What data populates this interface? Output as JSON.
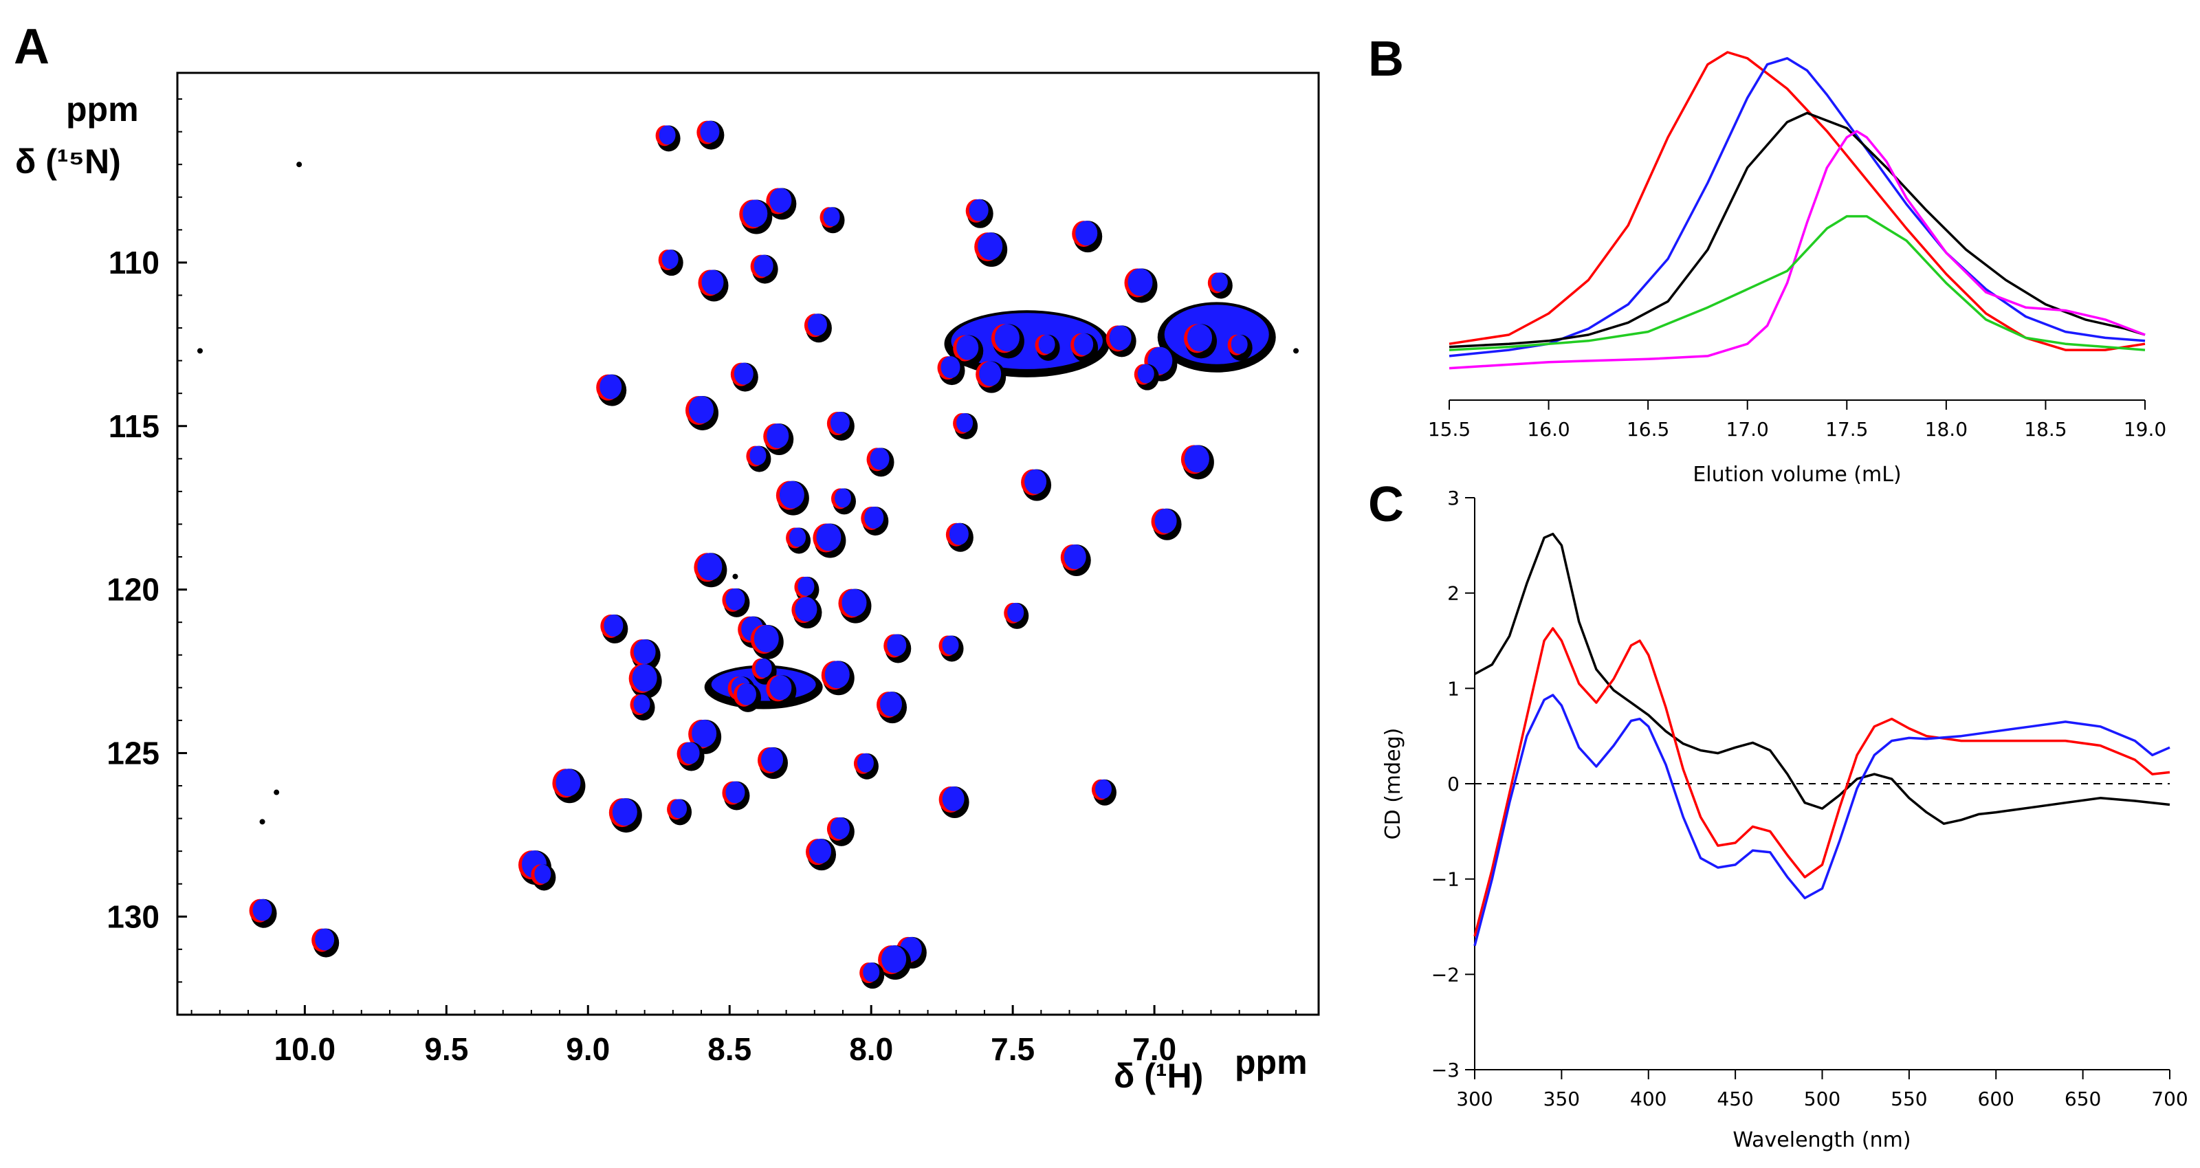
{
  "chart_data": [
    {
      "panel": "A",
      "type": "scatter",
      "subtype": "2D 1H-15N HSQC overlay",
      "xlabel": "δ (¹H)",
      "xunit": "ppm",
      "ylabel": "δ (¹⁵N)",
      "yunit": "ppm",
      "xlim": [
        10.45,
        6.42
      ],
      "ylim": [
        104.2,
        133
      ],
      "x_ticks": [
        "10.0",
        "9.5",
        "9.0",
        "8.5",
        "8.0",
        "7.5",
        "7.0"
      ],
      "y_ticks": [
        "110",
        "115",
        "120",
        "125",
        "130"
      ],
      "colors": {
        "black": "#000000",
        "red": "#ff0000",
        "blue": "#1a1aff"
      },
      "series": [
        {
          "name": "black",
          "color": "#000000"
        },
        {
          "name": "red",
          "color": "#ff0000"
        },
        {
          "name": "blue",
          "color": "#1a1aff"
        }
      ],
      "peaks": [
        [
          8.72,
          106.1
        ],
        [
          8.57,
          106.0
        ],
        [
          8.32,
          108.1
        ],
        [
          8.41,
          108.5
        ],
        [
          8.14,
          108.6
        ],
        [
          7.62,
          108.4
        ],
        [
          7.24,
          109.1
        ],
        [
          7.58,
          109.5
        ],
        [
          8.71,
          109.9
        ],
        [
          8.38,
          110.1
        ],
        [
          8.56,
          110.6
        ],
        [
          7.05,
          110.6
        ],
        [
          6.77,
          110.6
        ],
        [
          8.19,
          111.9
        ],
        [
          7.66,
          112.6
        ],
        [
          7.52,
          112.3
        ],
        [
          7.38,
          112.5
        ],
        [
          7.25,
          112.5
        ],
        [
          7.12,
          112.3
        ],
        [
          6.84,
          112.3
        ],
        [
          6.7,
          112.5
        ],
        [
          7.72,
          113.2
        ],
        [
          7.58,
          113.4
        ],
        [
          6.98,
          113.0
        ],
        [
          7.03,
          113.4
        ],
        [
          8.45,
          113.4
        ],
        [
          8.92,
          113.8
        ],
        [
          8.6,
          114.5
        ],
        [
          7.67,
          114.9
        ],
        [
          8.11,
          114.9
        ],
        [
          8.33,
          115.3
        ],
        [
          6.85,
          116.0
        ],
        [
          8.4,
          115.9
        ],
        [
          7.97,
          116.0
        ],
        [
          7.42,
          116.7
        ],
        [
          8.28,
          117.1
        ],
        [
          8.1,
          117.2
        ],
        [
          7.99,
          117.8
        ],
        [
          6.96,
          117.9
        ],
        [
          8.15,
          118.4
        ],
        [
          8.26,
          118.4
        ],
        [
          7.69,
          118.3
        ],
        [
          7.28,
          119.0
        ],
        [
          8.57,
          119.3
        ],
        [
          8.23,
          119.9
        ],
        [
          8.48,
          120.3
        ],
        [
          8.23,
          120.6
        ],
        [
          8.06,
          120.4
        ],
        [
          7.49,
          120.7
        ],
        [
          8.91,
          121.1
        ],
        [
          8.42,
          121.2
        ],
        [
          8.37,
          121.5
        ],
        [
          7.72,
          121.7
        ],
        [
          7.91,
          121.7
        ],
        [
          8.8,
          121.9
        ],
        [
          8.8,
          122.7
        ],
        [
          8.38,
          122.4
        ],
        [
          8.46,
          123.0
        ],
        [
          8.32,
          123.0
        ],
        [
          8.12,
          122.6
        ],
        [
          8.81,
          123.5
        ],
        [
          8.44,
          123.2
        ],
        [
          7.93,
          123.5
        ],
        [
          8.59,
          124.4
        ],
        [
          8.02,
          125.3
        ],
        [
          8.64,
          125.0
        ],
        [
          8.35,
          125.2
        ],
        [
          9.07,
          125.9
        ],
        [
          7.18,
          126.1
        ],
        [
          8.48,
          126.2
        ],
        [
          7.71,
          126.4
        ],
        [
          8.87,
          126.8
        ],
        [
          8.68,
          126.7
        ],
        [
          8.11,
          127.3
        ],
        [
          8.18,
          128.0
        ],
        [
          9.19,
          128.4
        ],
        [
          9.16,
          128.7
        ],
        [
          10.15,
          129.8
        ],
        [
          7.86,
          131.0
        ],
        [
          7.92,
          131.3
        ],
        [
          8.0,
          131.7
        ],
        [
          9.93,
          130.7
        ]
      ]
    },
    {
      "panel": "B",
      "type": "line",
      "subtype": "size-exclusion chromatogram",
      "xlabel": "Elution volume (mL)",
      "ylabel": "",
      "xlim": [
        15.5,
        19.0
      ],
      "x_ticks": [
        "15.5",
        "16.0",
        "16.5",
        "17.0",
        "17.5",
        "18.0",
        "18.5",
        "19.0"
      ],
      "y_ticks": [],
      "series": [
        {
          "name": "red",
          "color": "#ff0000",
          "x": [
            15.5,
            15.8,
            16.0,
            16.2,
            16.4,
            16.6,
            16.8,
            16.9,
            17.0,
            17.2,
            17.4,
            17.6,
            17.8,
            18.0,
            18.2,
            18.4,
            18.6,
            18.8,
            19.0
          ],
          "y": [
            0.04,
            0.07,
            0.14,
            0.25,
            0.43,
            0.72,
            0.96,
            1.0,
            0.98,
            0.88,
            0.74,
            0.58,
            0.42,
            0.27,
            0.14,
            0.06,
            0.02,
            0.02,
            0.04
          ]
        },
        {
          "name": "blue",
          "color": "#1a1aff",
          "x": [
            15.5,
            15.8,
            16.0,
            16.2,
            16.4,
            16.6,
            16.8,
            17.0,
            17.1,
            17.2,
            17.3,
            17.4,
            17.6,
            17.8,
            18.0,
            18.2,
            18.4,
            18.6,
            18.8,
            19.0
          ],
          "y": [
            0.0,
            0.02,
            0.04,
            0.09,
            0.17,
            0.32,
            0.57,
            0.85,
            0.96,
            0.98,
            0.94,
            0.86,
            0.68,
            0.5,
            0.34,
            0.22,
            0.13,
            0.08,
            0.06,
            0.05
          ]
        },
        {
          "name": "black",
          "color": "#000000",
          "x": [
            15.5,
            15.8,
            16.0,
            16.2,
            16.4,
            16.6,
            16.8,
            17.0,
            17.2,
            17.3,
            17.5,
            17.7,
            17.9,
            18.1,
            18.3,
            18.5,
            18.7,
            18.9,
            19.0
          ],
          "y": [
            0.03,
            0.04,
            0.05,
            0.07,
            0.11,
            0.18,
            0.35,
            0.62,
            0.77,
            0.8,
            0.75,
            0.62,
            0.48,
            0.35,
            0.25,
            0.17,
            0.12,
            0.09,
            0.07
          ]
        },
        {
          "name": "magenta",
          "color": "#ff00ff",
          "x": [
            15.5,
            16.0,
            16.5,
            16.8,
            17.0,
            17.1,
            17.2,
            17.3,
            17.4,
            17.5,
            17.55,
            17.6,
            17.7,
            17.8,
            18.0,
            18.2,
            18.4,
            18.6,
            18.8,
            19.0
          ],
          "y": [
            -0.04,
            -0.02,
            -0.01,
            0.0,
            0.04,
            0.1,
            0.24,
            0.44,
            0.62,
            0.72,
            0.74,
            0.72,
            0.64,
            0.52,
            0.34,
            0.21,
            0.16,
            0.15,
            0.12,
            0.07
          ]
        },
        {
          "name": "green",
          "color": "#22cc22",
          "x": [
            15.5,
            15.8,
            16.0,
            16.2,
            16.5,
            16.8,
            17.0,
            17.2,
            17.4,
            17.5,
            17.6,
            17.8,
            18.0,
            18.2,
            18.4,
            18.6,
            18.8,
            19.0
          ],
          "y": [
            0.02,
            0.03,
            0.04,
            0.05,
            0.08,
            0.16,
            0.22,
            0.28,
            0.42,
            0.46,
            0.46,
            0.38,
            0.24,
            0.12,
            0.06,
            0.04,
            0.03,
            0.02
          ]
        }
      ]
    },
    {
      "panel": "C",
      "type": "line",
      "subtype": "circular dichroism spectrum",
      "xlabel": "Wavelength (nm)",
      "ylabel": "CD (mdeg)",
      "xlim": [
        300,
        700
      ],
      "ylim": [
        -3,
        3
      ],
      "x_ticks": [
        "300",
        "350",
        "400",
        "450",
        "500",
        "550",
        "600",
        "650",
        "700"
      ],
      "y_ticks": [
        "3",
        "2",
        "1",
        "0",
        "−1",
        "−2",
        "−3"
      ],
      "zero_line": "dashed",
      "series": [
        {
          "name": "black",
          "color": "#000000",
          "x": [
            300,
            310,
            320,
            330,
            340,
            345,
            350,
            360,
            370,
            380,
            390,
            400,
            410,
            420,
            430,
            440,
            450,
            460,
            470,
            480,
            490,
            500,
            510,
            520,
            530,
            540,
            550,
            560,
            570,
            580,
            590,
            600,
            620,
            640,
            660,
            680,
            700
          ],
          "y": [
            1.15,
            1.25,
            1.55,
            2.1,
            2.58,
            2.62,
            2.5,
            1.7,
            1.2,
            0.98,
            0.85,
            0.72,
            0.55,
            0.42,
            0.35,
            0.32,
            0.38,
            0.43,
            0.35,
            0.1,
            -0.2,
            -0.26,
            -0.12,
            0.05,
            0.1,
            0.05,
            -0.15,
            -0.3,
            -0.42,
            -0.38,
            -0.32,
            -0.3,
            -0.25,
            -0.2,
            -0.15,
            -0.18,
            -0.22
          ]
        },
        {
          "name": "red",
          "color": "#ff0000",
          "x": [
            300,
            310,
            320,
            330,
            340,
            345,
            350,
            360,
            370,
            380,
            390,
            395,
            400,
            410,
            420,
            430,
            440,
            450,
            460,
            470,
            480,
            490,
            500,
            510,
            520,
            530,
            540,
            550,
            560,
            580,
            600,
            620,
            640,
            660,
            680,
            690,
            700
          ],
          "y": [
            -1.6,
            -0.9,
            -0.1,
            0.7,
            1.5,
            1.63,
            1.5,
            1.05,
            0.85,
            1.1,
            1.45,
            1.5,
            1.35,
            0.8,
            0.15,
            -0.35,
            -0.65,
            -0.62,
            -0.45,
            -0.5,
            -0.75,
            -0.98,
            -0.85,
            -0.25,
            0.3,
            0.6,
            0.68,
            0.58,
            0.5,
            0.45,
            0.45,
            0.45,
            0.45,
            0.4,
            0.25,
            0.1,
            0.12
          ]
        },
        {
          "name": "blue",
          "color": "#1a1aff",
          "x": [
            300,
            310,
            320,
            330,
            340,
            345,
            350,
            360,
            370,
            380,
            390,
            395,
            400,
            410,
            420,
            430,
            440,
            450,
            460,
            470,
            480,
            490,
            500,
            510,
            520,
            530,
            540,
            550,
            560,
            580,
            600,
            620,
            640,
            660,
            680,
            690,
            700
          ],
          "y": [
            -1.7,
            -1.0,
            -0.2,
            0.5,
            0.88,
            0.93,
            0.82,
            0.38,
            0.18,
            0.4,
            0.66,
            0.68,
            0.6,
            0.2,
            -0.35,
            -0.78,
            -0.88,
            -0.85,
            -0.7,
            -0.72,
            -0.98,
            -1.2,
            -1.1,
            -0.6,
            -0.05,
            0.3,
            0.45,
            0.48,
            0.47,
            0.5,
            0.55,
            0.6,
            0.65,
            0.6,
            0.45,
            0.3,
            0.38
          ]
        }
      ]
    }
  ],
  "panel_labels": [
    "A",
    "B",
    "C"
  ],
  "ppm_label_x": "ppm",
  "ppm_label_y": "ppm"
}
